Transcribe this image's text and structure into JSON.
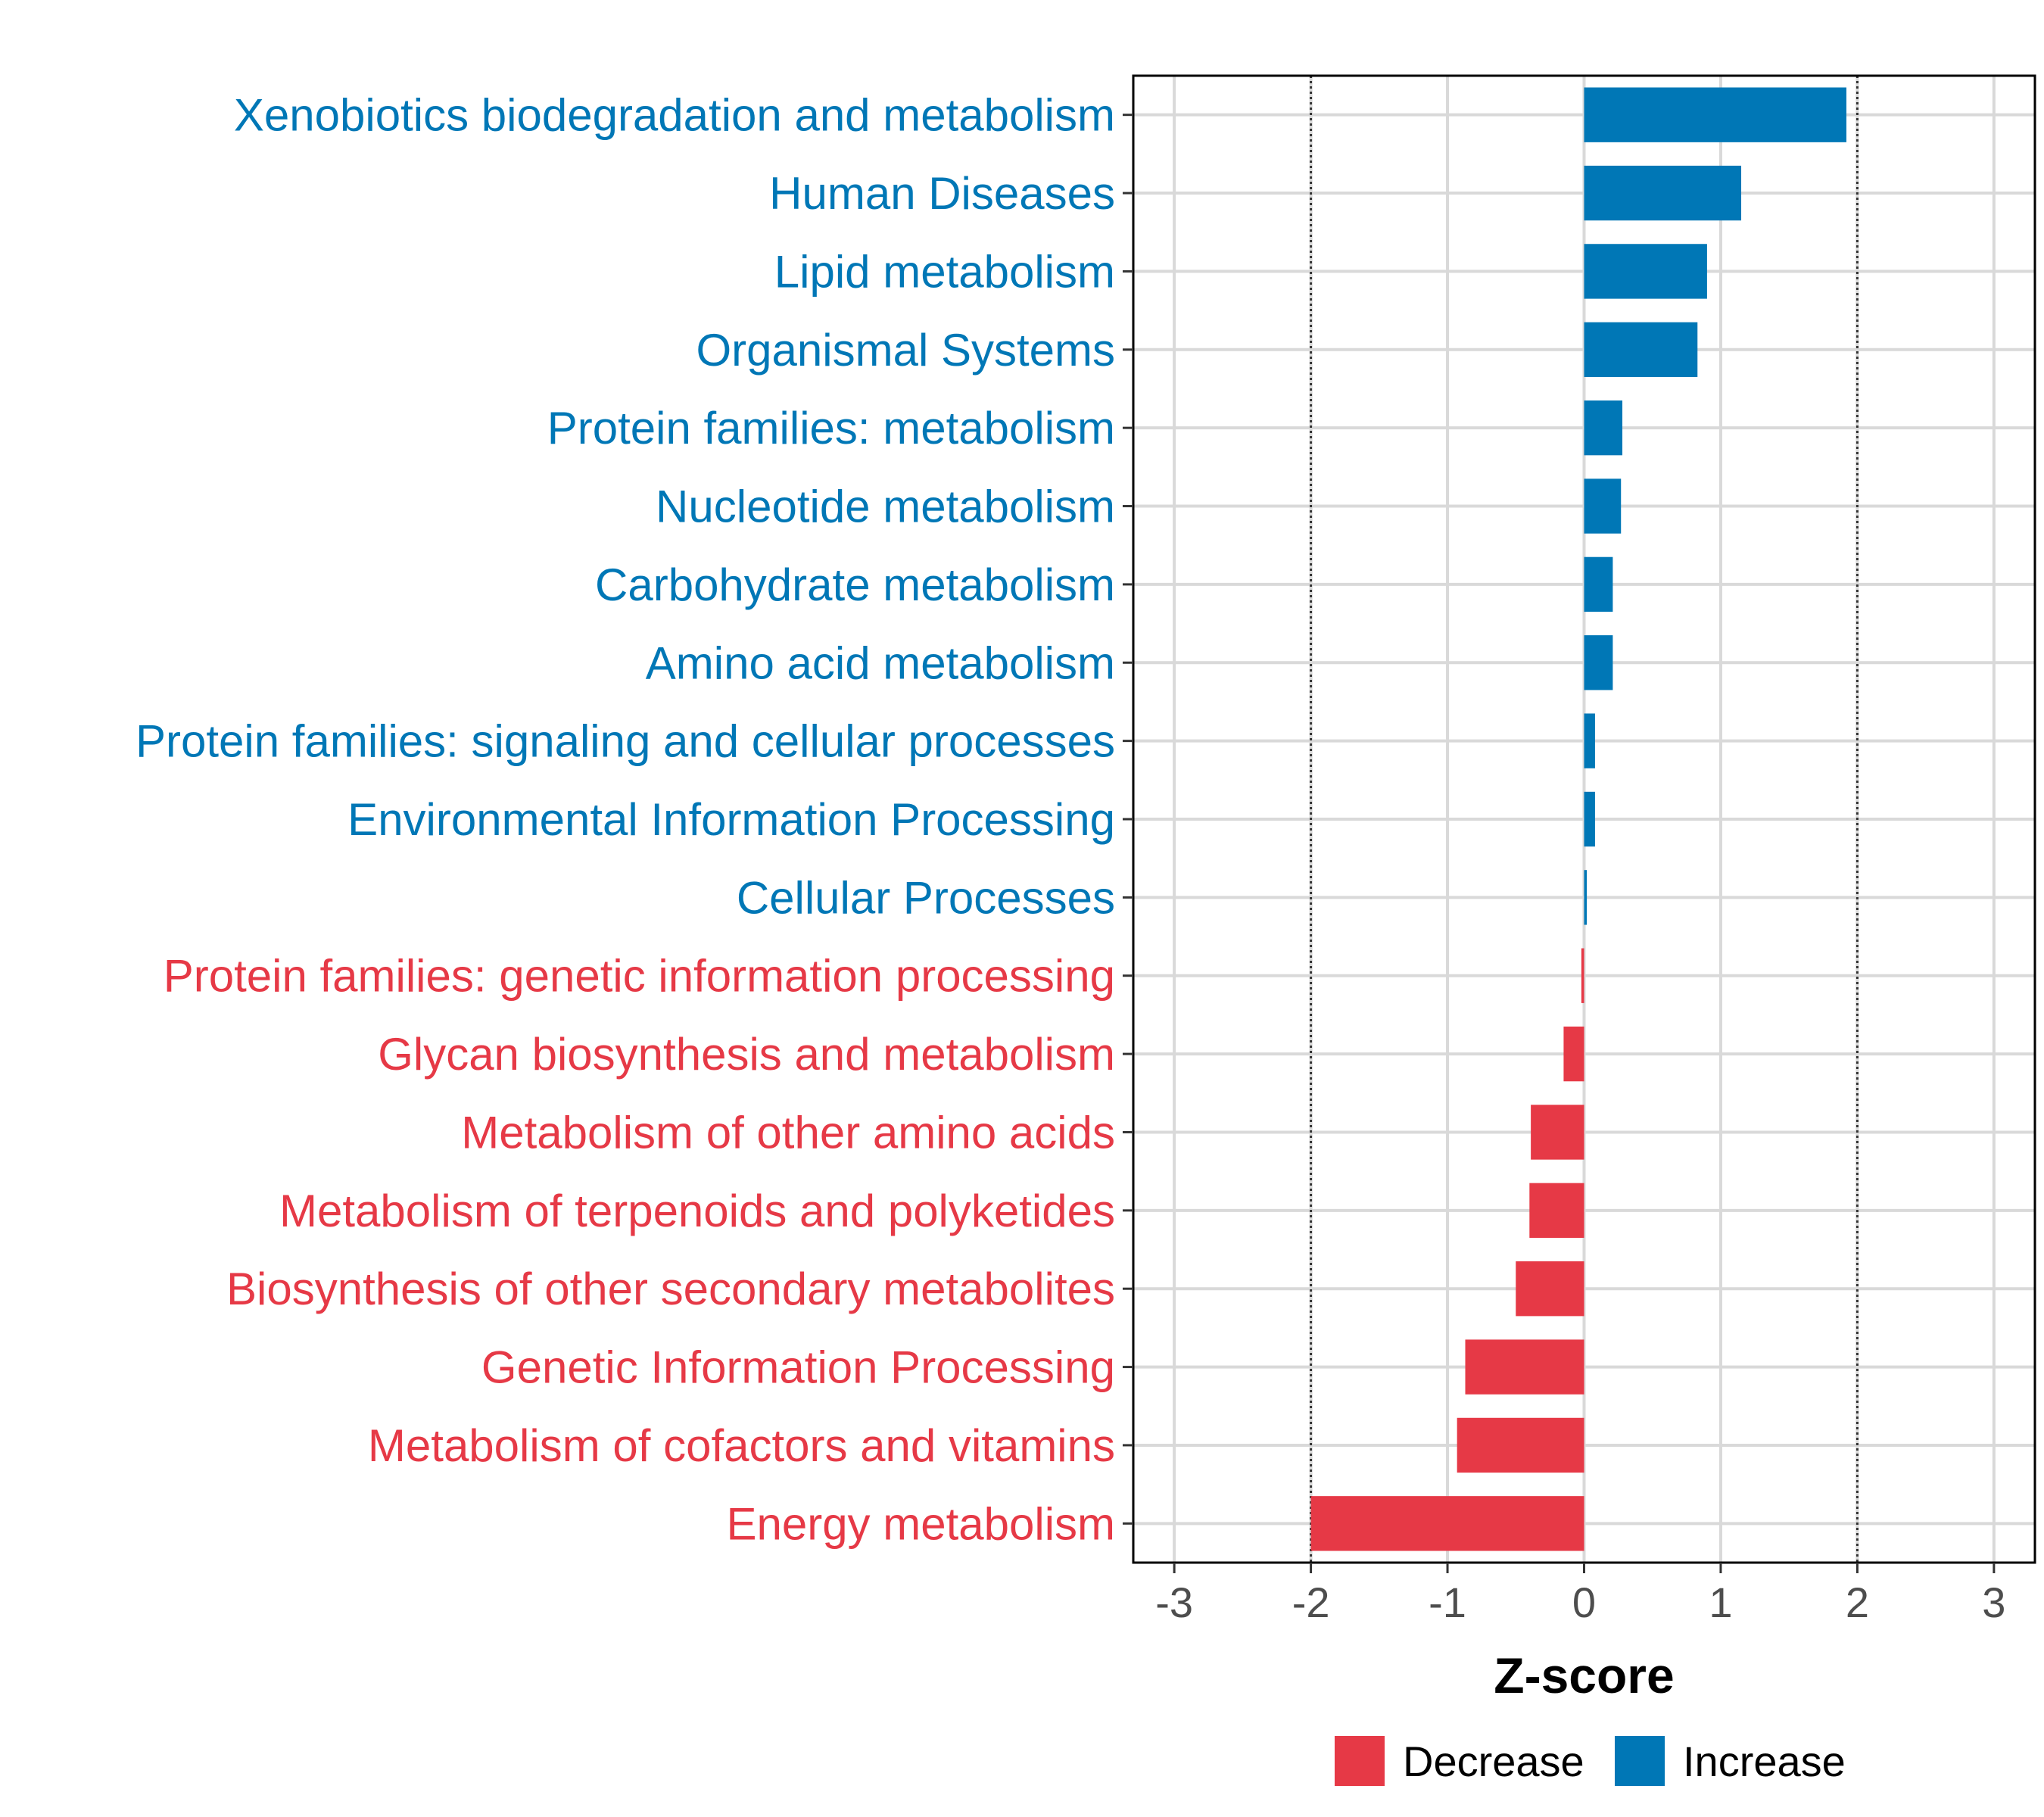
{
  "chart_data": {
    "type": "bar",
    "orientation": "horizontal",
    "xlabel": "Z-score",
    "xlim": [
      -3.3,
      3.3
    ],
    "xticks": [
      -3,
      -2,
      -1,
      0,
      1,
      2,
      3
    ],
    "reference_lines": [
      -2,
      2
    ],
    "grid": true,
    "categories": [
      "Xenobiotics biodegradation and metabolism",
      "Human Diseases",
      "Lipid metabolism",
      "Organismal Systems",
      "Protein families: metabolism",
      "Nucleotide metabolism",
      "Carbohydrate metabolism",
      "Amino acid metabolism",
      "Protein families: signaling and cellular processes",
      "Environmental Information Processing",
      "Cellular Processes",
      "Protein families: genetic information processing",
      "Glycan biosynthesis and metabolism",
      "Metabolism of other amino acids",
      "Metabolism of terpenoids and polyketides",
      "Biosynthesis of other secondary metabolites",
      "Genetic Information Processing",
      "Metabolism of cofactors and vitamins",
      "Energy metabolism"
    ],
    "values": [
      1.92,
      1.15,
      0.9,
      0.83,
      0.28,
      0.27,
      0.21,
      0.21,
      0.08,
      0.08,
      0.02,
      -0.02,
      -0.15,
      -0.39,
      -0.4,
      -0.5,
      -0.87,
      -0.93,
      -2.0
    ],
    "groups": [
      "Increase",
      "Increase",
      "Increase",
      "Increase",
      "Increase",
      "Increase",
      "Increase",
      "Increase",
      "Increase",
      "Increase",
      "Increase",
      "Decrease",
      "Decrease",
      "Decrease",
      "Decrease",
      "Decrease",
      "Decrease",
      "Decrease",
      "Decrease"
    ],
    "legend": [
      {
        "label": "Decrease",
        "color": "#E63946"
      },
      {
        "label": "Increase",
        "color": "#0077B6"
      }
    ],
    "legend_position": "bottom"
  }
}
